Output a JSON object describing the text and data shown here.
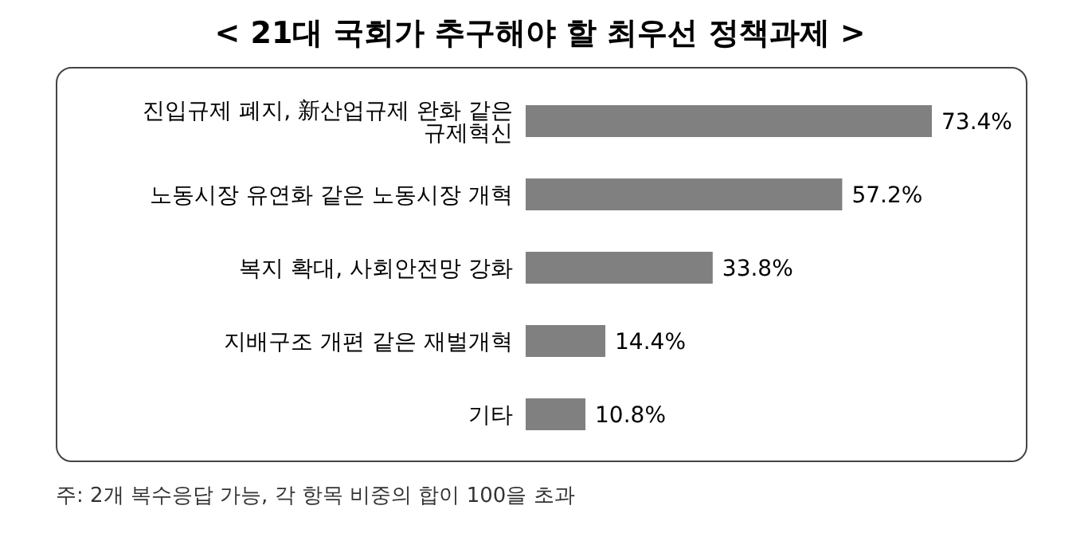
{
  "chart_data": {
    "type": "bar",
    "orientation": "horizontal",
    "title": "< 21대 국회가 추구해야 할 최우선 정책과제 >",
    "categories": [
      "진입규제 폐지, 新산업규제 완화 같은 규제혁신",
      "노동시장 유연화 같은 노동시장 개혁",
      "복지 확대, 사회안전망 강화",
      "지배구조 개편 같은 재벌개혁",
      "기타"
    ],
    "values": [
      73.4,
      57.2,
      33.8,
      14.4,
      10.8
    ],
    "value_labels": [
      "73.4%",
      "57.2%",
      "33.8%",
      "14.4%",
      "10.8%"
    ],
    "color": "#808080",
    "annotations": [
      "주: 2개 복수응답 가능, 각 항목 비중의 합이 100을 초과"
    ]
  }
}
